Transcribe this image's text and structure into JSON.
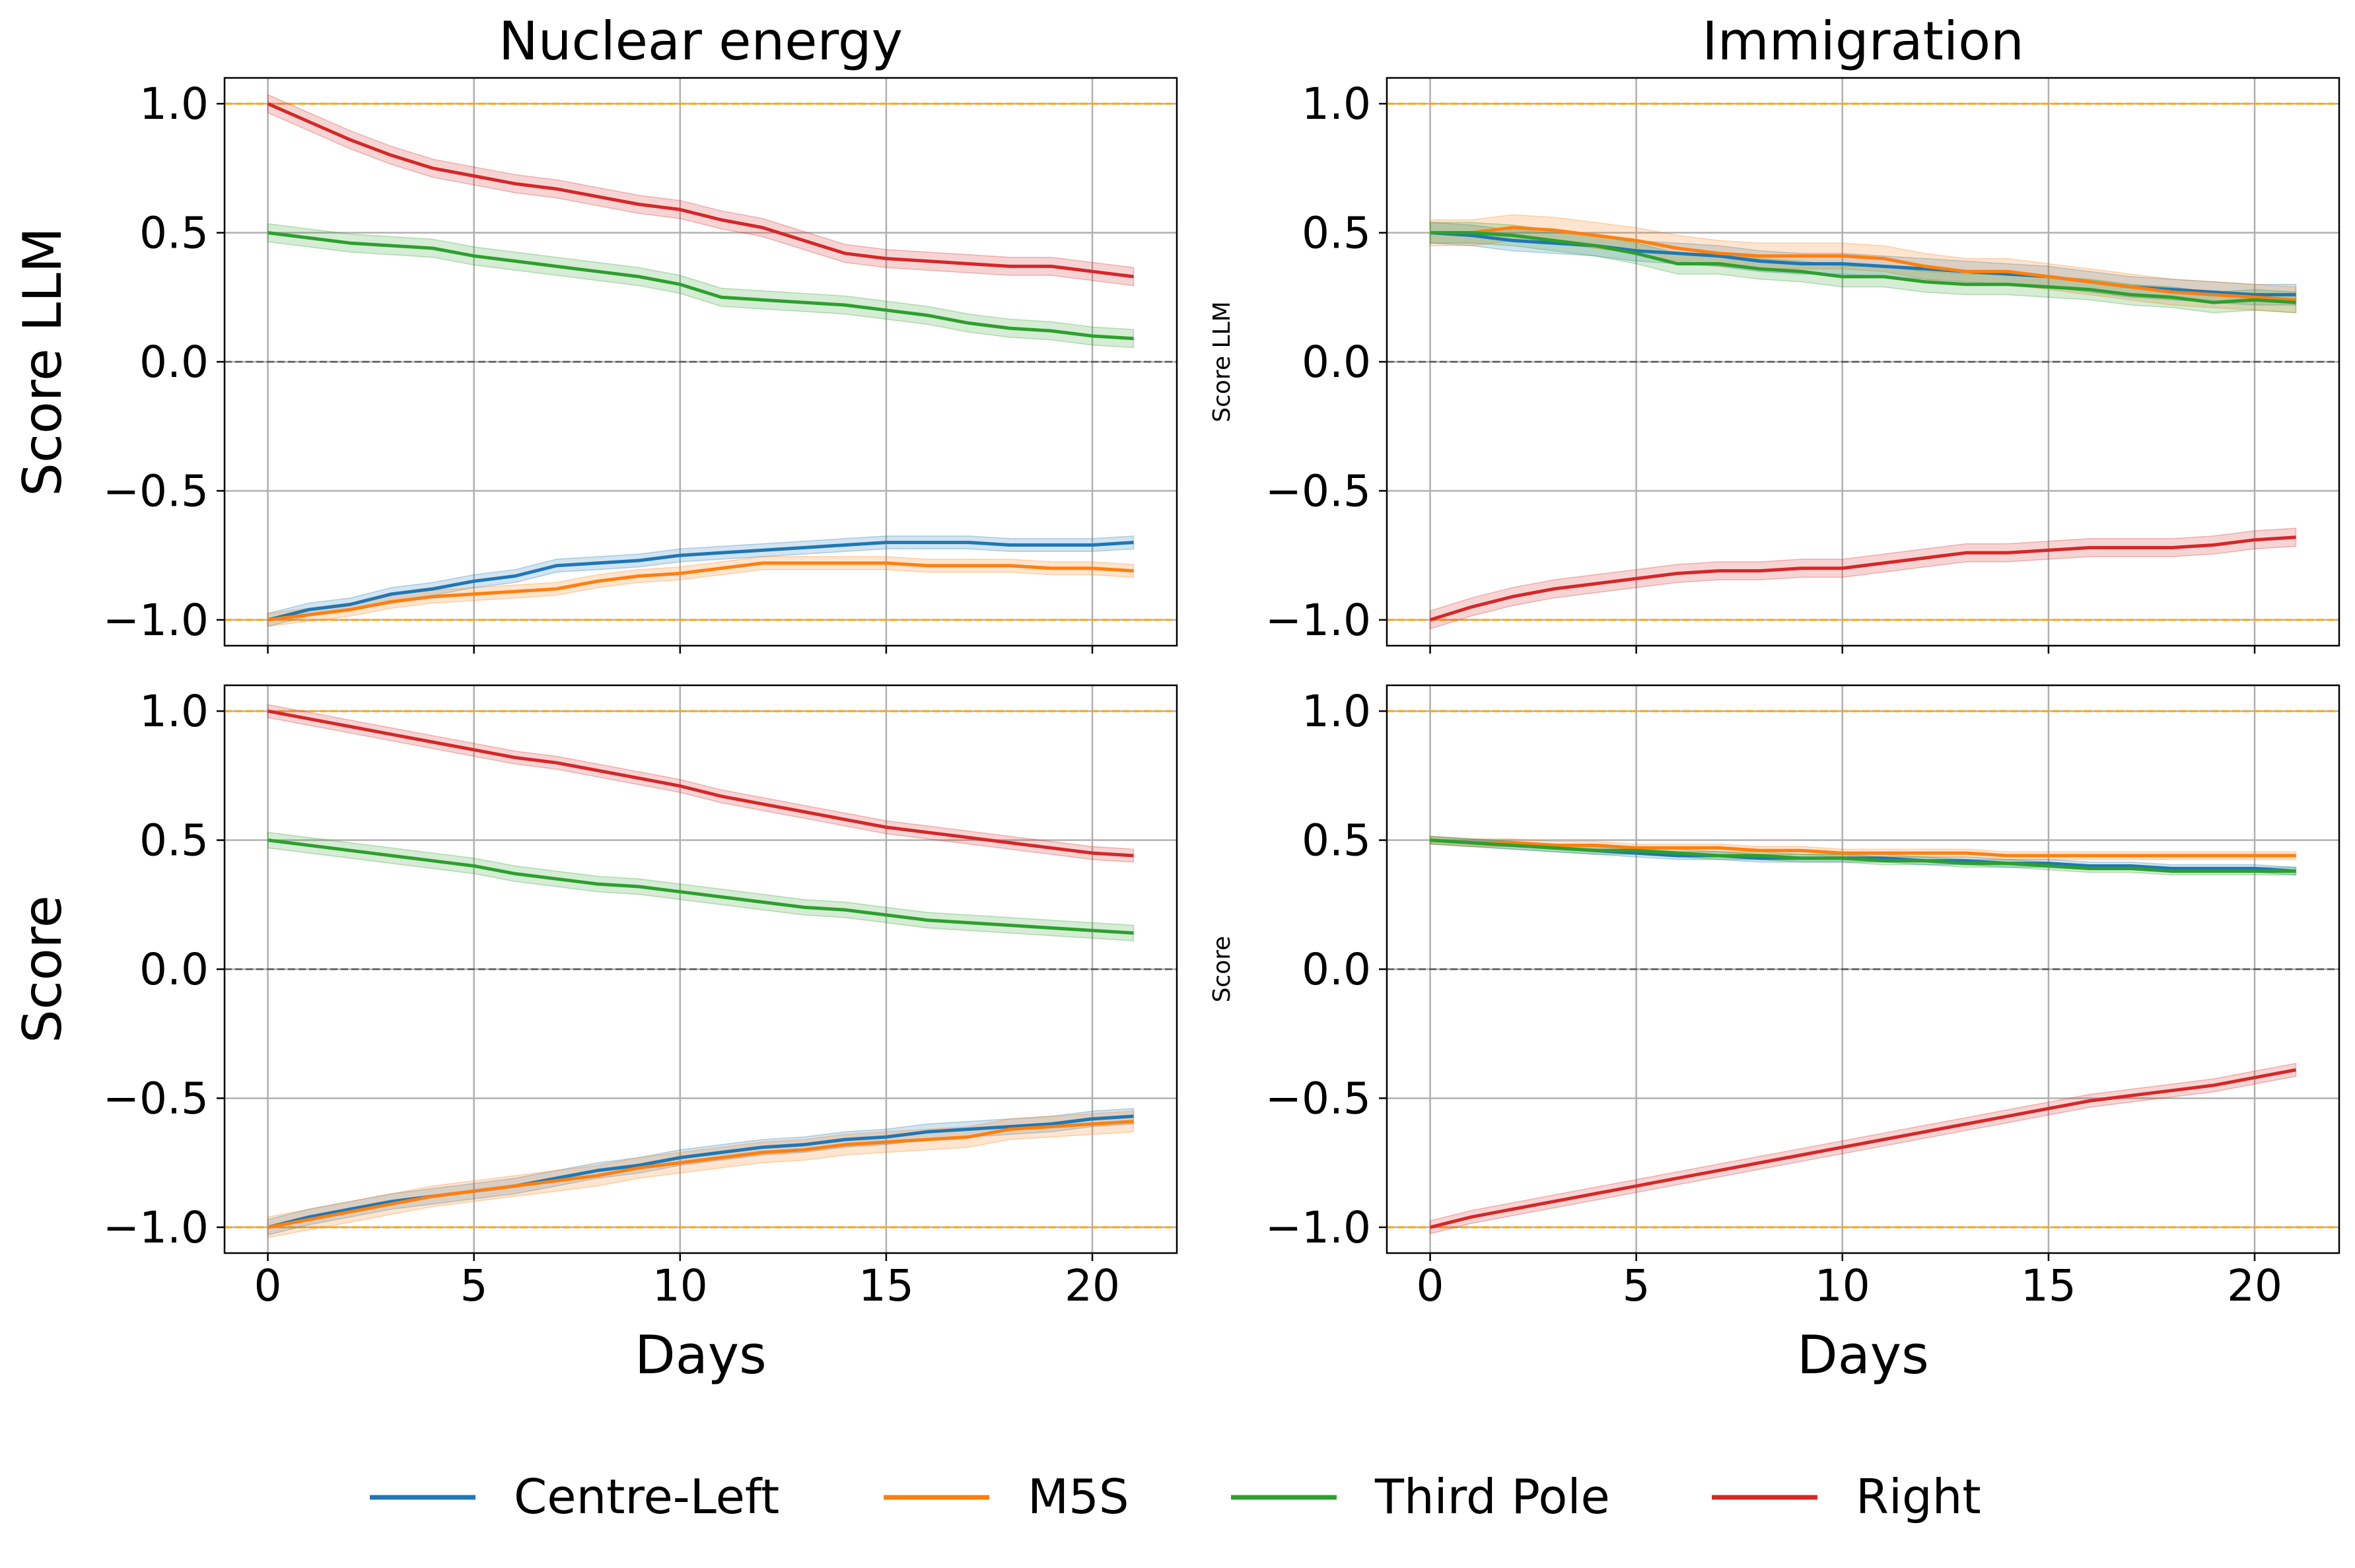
{
  "colors": {
    "Centre-Left": "#1f77b4",
    "M5S": "#ff7f0e",
    "Third Pole": "#2ca02c",
    "Right": "#d62728",
    "bound_line": "#ffa500",
    "zero_line": "#555555",
    "grid": "#b0b0b0"
  },
  "legend": {
    "placement": "bottom-center",
    "items": [
      "Centre-Left",
      "M5S",
      "Third Pole",
      "Right"
    ]
  },
  "xlabel": "Days",
  "chart_data": [
    {
      "type": "line",
      "title": "Nuclear energy",
      "xlabel": "",
      "ylabel": "Score LLM",
      "xlim": [
        -1.05,
        22.05
      ],
      "ylim": [
        -1.1,
        1.1
      ],
      "xticks": [
        0,
        5,
        10,
        15,
        20
      ],
      "xtick_labels": [
        "",
        "",
        "",
        "",
        ""
      ],
      "yticks": [
        1.0,
        0.5,
        0.0,
        -0.5,
        -1.0
      ],
      "ytick_labels": [
        "1.0",
        "0.5",
        "0.0",
        "−0.5",
        "−1.0"
      ],
      "grid": true,
      "hlines": [
        {
          "y": 1.0,
          "style": "bound"
        },
        {
          "y": -1.0,
          "style": "bound"
        },
        {
          "y": 0.0,
          "style": "zero"
        }
      ],
      "x": [
        0,
        1,
        2,
        3,
        4,
        5,
        6,
        7,
        8,
        9,
        10,
        11,
        12,
        13,
        14,
        15,
        16,
        17,
        18,
        19,
        20,
        21
      ],
      "series": [
        {
          "name": "Centre-Left",
          "ci": 0.025,
          "values": [
            -1.0,
            -0.96,
            -0.94,
            -0.9,
            -0.88,
            -0.85,
            -0.83,
            -0.79,
            -0.78,
            -0.77,
            -0.75,
            -0.74,
            -0.73,
            -0.72,
            -0.71,
            -0.7,
            -0.7,
            -0.7,
            -0.71,
            -0.71,
            -0.71,
            -0.7
          ]
        },
        {
          "name": "M5S",
          "ci": 0.025,
          "values": [
            -1.0,
            -0.98,
            -0.96,
            -0.93,
            -0.91,
            -0.9,
            -0.89,
            -0.88,
            -0.85,
            -0.83,
            -0.82,
            -0.8,
            -0.78,
            -0.78,
            -0.78,
            -0.78,
            -0.79,
            -0.79,
            -0.79,
            -0.8,
            -0.8,
            -0.81
          ]
        },
        {
          "name": "Third Pole",
          "ci": 0.035,
          "values": [
            0.5,
            0.48,
            0.46,
            0.45,
            0.44,
            0.41,
            0.39,
            0.37,
            0.35,
            0.33,
            0.3,
            0.25,
            0.24,
            0.23,
            0.22,
            0.2,
            0.18,
            0.15,
            0.13,
            0.12,
            0.1,
            0.09
          ]
        },
        {
          "name": "Right",
          "ci": 0.035,
          "values": [
            1.0,
            0.93,
            0.86,
            0.8,
            0.75,
            0.72,
            0.69,
            0.67,
            0.64,
            0.61,
            0.59,
            0.55,
            0.52,
            0.47,
            0.42,
            0.4,
            0.39,
            0.38,
            0.37,
            0.37,
            0.35,
            0.33
          ]
        }
      ]
    },
    {
      "type": "line",
      "title": "Immigration",
      "xlabel": "",
      "ylabel": "Score LLM",
      "xlim": [
        -1.05,
        22.05
      ],
      "ylim": [
        -1.1,
        1.1
      ],
      "xticks": [
        0,
        5,
        10,
        15,
        20
      ],
      "xtick_labels": [
        "",
        "",
        "",
        "",
        ""
      ],
      "yticks": [
        1.0,
        0.5,
        0.0,
        -0.5,
        -1.0
      ],
      "ytick_labels": [
        "1.0",
        "0.5",
        "0.0",
        "−0.5",
        "−1.0"
      ],
      "grid": true,
      "hlines": [
        {
          "y": 1.0,
          "style": "bound"
        },
        {
          "y": -1.0,
          "style": "bound"
        },
        {
          "y": 0.0,
          "style": "zero"
        }
      ],
      "x": [
        0,
        1,
        2,
        3,
        4,
        5,
        6,
        7,
        8,
        9,
        10,
        11,
        12,
        13,
        14,
        15,
        16,
        17,
        18,
        19,
        20,
        21
      ],
      "series": [
        {
          "name": "Centre-Left",
          "ci": 0.04,
          "values": [
            0.5,
            0.49,
            0.47,
            0.46,
            0.45,
            0.43,
            0.42,
            0.41,
            0.39,
            0.38,
            0.38,
            0.37,
            0.36,
            0.35,
            0.34,
            0.33,
            0.31,
            0.29,
            0.28,
            0.27,
            0.26,
            0.26
          ]
        },
        {
          "name": "M5S",
          "ci": 0.05,
          "values": [
            0.5,
            0.5,
            0.52,
            0.51,
            0.49,
            0.47,
            0.44,
            0.42,
            0.41,
            0.41,
            0.41,
            0.4,
            0.37,
            0.35,
            0.35,
            0.33,
            0.31,
            0.29,
            0.27,
            0.26,
            0.25,
            0.24
          ]
        },
        {
          "name": "Third Pole",
          "ci": 0.04,
          "values": [
            0.5,
            0.5,
            0.49,
            0.47,
            0.45,
            0.42,
            0.38,
            0.38,
            0.36,
            0.35,
            0.33,
            0.33,
            0.31,
            0.3,
            0.3,
            0.29,
            0.28,
            0.26,
            0.25,
            0.23,
            0.24,
            0.23
          ]
        },
        {
          "name": "Right",
          "ci": 0.035,
          "values": [
            -1.0,
            -0.95,
            -0.91,
            -0.88,
            -0.86,
            -0.84,
            -0.82,
            -0.81,
            -0.81,
            -0.8,
            -0.8,
            -0.78,
            -0.76,
            -0.74,
            -0.74,
            -0.73,
            -0.72,
            -0.72,
            -0.72,
            -0.71,
            -0.69,
            -0.68
          ]
        }
      ]
    },
    {
      "type": "line",
      "title": "",
      "xlabel": "Days",
      "ylabel": "Score",
      "xlim": [
        -1.05,
        22.05
      ],
      "ylim": [
        -1.1,
        1.1
      ],
      "xticks": [
        0,
        5,
        10,
        15,
        20
      ],
      "xtick_labels": [
        "0",
        "5",
        "10",
        "15",
        "20"
      ],
      "yticks": [
        1.0,
        0.5,
        0.0,
        -0.5,
        -1.0
      ],
      "ytick_labels": [
        "1.0",
        "0.5",
        "0.0",
        "−0.5",
        "−1.0"
      ],
      "grid": true,
      "hlines": [
        {
          "y": 1.0,
          "style": "bound"
        },
        {
          "y": -1.0,
          "style": "bound"
        },
        {
          "y": 0.0,
          "style": "zero"
        }
      ],
      "x": [
        0,
        1,
        2,
        3,
        4,
        5,
        6,
        7,
        8,
        9,
        10,
        11,
        12,
        13,
        14,
        15,
        16,
        17,
        18,
        19,
        20,
        21
      ],
      "series": [
        {
          "name": "Centre-Left",
          "ci": 0.03,
          "values": [
            -1.0,
            -0.96,
            -0.93,
            -0.9,
            -0.88,
            -0.86,
            -0.84,
            -0.81,
            -0.78,
            -0.76,
            -0.73,
            -0.71,
            -0.69,
            -0.68,
            -0.66,
            -0.65,
            -0.63,
            -0.62,
            -0.61,
            -0.6,
            -0.58,
            -0.57
          ]
        },
        {
          "name": "M5S",
          "ci": 0.04,
          "values": [
            -1.0,
            -0.97,
            -0.94,
            -0.91,
            -0.88,
            -0.86,
            -0.84,
            -0.82,
            -0.8,
            -0.77,
            -0.75,
            -0.73,
            -0.71,
            -0.7,
            -0.68,
            -0.67,
            -0.66,
            -0.65,
            -0.62,
            -0.61,
            -0.6,
            -0.59
          ]
        },
        {
          "name": "Third Pole",
          "ci": 0.03,
          "values": [
            0.5,
            0.48,
            0.46,
            0.44,
            0.42,
            0.4,
            0.37,
            0.35,
            0.33,
            0.32,
            0.3,
            0.28,
            0.26,
            0.24,
            0.23,
            0.21,
            0.19,
            0.18,
            0.17,
            0.16,
            0.15,
            0.14
          ]
        },
        {
          "name": "Right",
          "ci": 0.025,
          "values": [
            1.0,
            0.97,
            0.94,
            0.91,
            0.88,
            0.85,
            0.82,
            0.8,
            0.77,
            0.74,
            0.71,
            0.67,
            0.64,
            0.61,
            0.58,
            0.55,
            0.53,
            0.51,
            0.49,
            0.47,
            0.45,
            0.44
          ]
        }
      ]
    },
    {
      "type": "line",
      "title": "",
      "xlabel": "Days",
      "ylabel": "Score",
      "xlim": [
        -1.05,
        22.05
      ],
      "ylim": [
        -1.1,
        1.1
      ],
      "xticks": [
        0,
        5,
        10,
        15,
        20
      ],
      "xtick_labels": [
        "0",
        "5",
        "10",
        "15",
        "20"
      ],
      "yticks": [
        1.0,
        0.5,
        0.0,
        -0.5,
        -1.0
      ],
      "ytick_labels": [
        "1.0",
        "0.5",
        "0.0",
        "−0.5",
        "−1.0"
      ],
      "grid": true,
      "hlines": [
        {
          "y": 1.0,
          "style": "bound"
        },
        {
          "y": -1.0,
          "style": "bound"
        },
        {
          "y": 0.0,
          "style": "zero"
        }
      ],
      "x": [
        0,
        1,
        2,
        3,
        4,
        5,
        6,
        7,
        8,
        9,
        10,
        11,
        12,
        13,
        14,
        15,
        16,
        17,
        18,
        19,
        20,
        21
      ],
      "series": [
        {
          "name": "Centre-Left",
          "ci": 0.015,
          "values": [
            0.5,
            0.49,
            0.48,
            0.47,
            0.46,
            0.45,
            0.44,
            0.44,
            0.43,
            0.43,
            0.43,
            0.43,
            0.42,
            0.42,
            0.41,
            0.41,
            0.4,
            0.4,
            0.39,
            0.39,
            0.39,
            0.38
          ]
        },
        {
          "name": "M5S",
          "ci": 0.015,
          "values": [
            0.5,
            0.49,
            0.49,
            0.48,
            0.48,
            0.47,
            0.47,
            0.47,
            0.46,
            0.46,
            0.45,
            0.45,
            0.45,
            0.45,
            0.44,
            0.44,
            0.44,
            0.44,
            0.44,
            0.44,
            0.44,
            0.44
          ]
        },
        {
          "name": "Third Pole",
          "ci": 0.015,
          "values": [
            0.5,
            0.49,
            0.48,
            0.47,
            0.46,
            0.46,
            0.45,
            0.44,
            0.44,
            0.43,
            0.43,
            0.42,
            0.42,
            0.41,
            0.41,
            0.4,
            0.39,
            0.39,
            0.38,
            0.38,
            0.38,
            0.38
          ]
        },
        {
          "name": "Right",
          "ci": 0.025,
          "values": [
            -1.0,
            -0.96,
            -0.93,
            -0.9,
            -0.87,
            -0.84,
            -0.81,
            -0.78,
            -0.75,
            -0.72,
            -0.69,
            -0.66,
            -0.63,
            -0.6,
            -0.57,
            -0.54,
            -0.51,
            -0.49,
            -0.47,
            -0.45,
            -0.42,
            -0.39
          ]
        }
      ]
    }
  ]
}
